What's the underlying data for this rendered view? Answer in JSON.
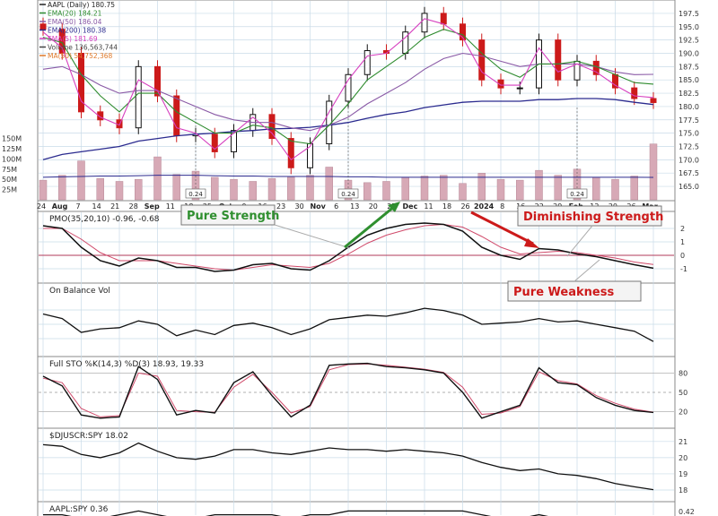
{
  "price_panel": {
    "legend": [
      {
        "text": "AAPL (Daily) 180.75",
        "color": "#222222"
      },
      {
        "text": "EMA(20) 184.21",
        "color": "#2e8b2e"
      },
      {
        "text": "EMA(50) 186.04",
        "color": "#8a5aa6"
      },
      {
        "text": "EMA(200) 180.38",
        "color": "#2b2b8f"
      },
      {
        "text": "EMA(5) 181.69",
        "color": "#d63fbf"
      },
      {
        "text": "Volume 136,563,744",
        "color": "#444444"
      },
      {
        "text": "MA(50) 54,752,368",
        "color": "#e07a2a"
      }
    ],
    "price_ticks": [
      "197.5",
      "195.0",
      "192.5",
      "190.0",
      "187.5",
      "185.0",
      "182.5",
      "180.0",
      "177.5",
      "175.0",
      "172.5",
      "170.0",
      "167.5",
      "165.0"
    ],
    "volume_ticks": [
      "150M",
      "125M",
      "100M",
      "75M",
      "50M",
      "25M"
    ],
    "date_labels": [
      "24",
      "Aug",
      "7",
      "14",
      "21",
      "28",
      "Sep",
      "11",
      "18",
      "25",
      "Oct",
      "9",
      "16",
      "23",
      "30",
      "Nov",
      "6",
      "13",
      "20",
      "27",
      "Dec",
      "11",
      "18",
      "26",
      "2024",
      "8",
      "16",
      "22",
      "29",
      "Feb",
      "12",
      "20",
      "26",
      "Mar"
    ],
    "volume_callouts": [
      "0.24",
      "0.24",
      "0.24"
    ]
  },
  "pmo_panel": {
    "title": "PMO(35,20,10) -0.96, -0.68",
    "ticks": [
      "2",
      "1",
      "0",
      "-1"
    ],
    "annotations": {
      "pure_strength": "Pure Strength",
      "diminishing_strength": "Diminishing Strength",
      "pure_weakness": "Pure Weakness"
    }
  },
  "obv_panel": {
    "title": "On Balance Vol"
  },
  "sto_panel": {
    "title": "Full STO %K(14,3) %D(3) 18.93, 19.33",
    "ticks": [
      "80",
      "50",
      "20"
    ]
  },
  "breadth_panel": {
    "title": "$DJUSCR:SPY 18.02",
    "ticks": [
      "21",
      "20",
      "19",
      "18"
    ]
  },
  "ratio_panel": {
    "title": "AAPL:SPY 0.36",
    "ticks": [
      "0.42"
    ]
  },
  "colors": {
    "up_candle": "#111111",
    "down_candle": "#cc1a1a",
    "volume": "#d7a9b6",
    "grid": "#c9dbe8",
    "annotation_green": "#2f8f2f",
    "annotation_red": "#cc1a1a",
    "pmo_signal": "#d04a6a"
  },
  "chart_data": [
    {
      "type": "candlestick",
      "title": "AAPL (Daily) 180.75",
      "ylim": [
        164,
        199
      ],
      "x": [
        "Jul 24",
        "Jul 31",
        "Aug 7",
        "Aug 14",
        "Aug 21",
        "Aug 28",
        "Sep 5",
        "Sep 11",
        "Sep 18",
        "Sep 25",
        "Oct 2",
        "Oct 9",
        "Oct 16",
        "Oct 23",
        "Oct 30",
        "Nov 6",
        "Nov 13",
        "Nov 20",
        "Nov 27",
        "Dec 4",
        "Dec 11",
        "Dec 18",
        "Dec 26",
        "Jan 2",
        "Jan 8",
        "Jan 16",
        "Jan 22",
        "Jan 29",
        "Feb 5",
        "Feb 12",
        "Feb 20",
        "Feb 26",
        "Mar 1"
      ],
      "close": [
        194.5,
        190.0,
        179.0,
        177.5,
        176.0,
        187.5,
        182.0,
        174.5,
        174.8,
        171.5,
        175.5,
        178.5,
        174.0,
        168.5,
        173.0,
        181.0,
        186.0,
        190.5,
        190.0,
        194.0,
        197.5,
        195.5,
        192.5,
        185.0,
        183.5,
        183.5,
        192.5,
        185.0,
        188.5,
        186.0,
        183.5,
        181.5,
        180.75
      ],
      "ema5": [
        194.0,
        191.0,
        181.0,
        178.0,
        176.5,
        185.0,
        183.0,
        176.0,
        175.0,
        172.0,
        175.0,
        178.0,
        175.0,
        170.0,
        172.5,
        179.0,
        185.0,
        189.5,
        190.0,
        193.0,
        196.5,
        195.5,
        193.0,
        186.5,
        184.0,
        184.0,
        191.0,
        186.5,
        188.0,
        186.5,
        184.0,
        182.0,
        181.69
      ],
      "ema20": [
        193.0,
        192.0,
        186.0,
        182.0,
        179.0,
        182.5,
        182.5,
        179.0,
        177.0,
        175.0,
        175.0,
        176.5,
        176.0,
        173.5,
        173.0,
        176.5,
        180.5,
        185.0,
        187.5,
        190.0,
        193.0,
        194.5,
        193.5,
        190.0,
        187.0,
        185.5,
        188.0,
        188.0,
        188.5,
        187.5,
        186.0,
        184.5,
        184.21
      ],
      "ema50": [
        187.0,
        187.5,
        186.0,
        184.0,
        182.5,
        183.0,
        183.0,
        181.5,
        180.0,
        178.5,
        177.5,
        177.0,
        177.0,
        176.0,
        175.5,
        176.5,
        178.0,
        180.5,
        182.5,
        184.5,
        187.0,
        189.0,
        190.0,
        189.5,
        188.5,
        187.5,
        188.0,
        188.0,
        188.0,
        187.5,
        186.5,
        186.0,
        186.04
      ],
      "ema200": [
        170.0,
        171.0,
        171.5,
        172.0,
        172.5,
        173.5,
        174.0,
        174.5,
        174.8,
        175.0,
        175.3,
        175.5,
        175.8,
        175.9,
        176.1,
        176.5,
        177.0,
        177.8,
        178.5,
        179.0,
        179.8,
        180.3,
        180.8,
        181.0,
        181.0,
        181.0,
        181.3,
        181.3,
        181.5,
        181.5,
        181.3,
        180.8,
        180.38
      ]
    },
    {
      "type": "bar",
      "title": "Volume 136,563,744",
      "ylabel": "Volume",
      "ylim": [
        0,
        160000000
      ],
      "values": [
        48000000,
        60000000,
        95000000,
        52000000,
        45000000,
        50000000,
        105000000,
        62000000,
        70000000,
        55000000,
        50000000,
        45000000,
        52000000,
        55000000,
        60000000,
        80000000,
        48000000,
        42000000,
        45000000,
        55000000,
        58000000,
        60000000,
        40000000,
        65000000,
        50000000,
        48000000,
        72000000,
        60000000,
        75000000,
        55000000,
        50000000,
        58000000,
        136563744
      ],
      "ma50": [
        55000000,
        56000000,
        57000000,
        58000000,
        58000000,
        59000000,
        60000000,
        60000000,
        60000000,
        59000000,
        58000000,
        58000000,
        57000000,
        57000000,
        57000000,
        57000000,
        56000000,
        56000000,
        55000000,
        55000000,
        55000000,
        55000000,
        55000000,
        55000000,
        55000000,
        55000000,
        55000000,
        55000000,
        55000000,
        55000000,
        55000000,
        55000000,
        54752368
      ]
    },
    {
      "type": "line",
      "title": "PMO(35,20,10) -0.96, -0.68",
      "ylim": [
        -1.8,
        3.0
      ],
      "series": [
        {
          "name": "PMO",
          "values": [
            2.2,
            2.0,
            0.6,
            -0.4,
            -0.8,
            -0.2,
            -0.4,
            -0.9,
            -0.9,
            -1.2,
            -1.1,
            -0.7,
            -0.6,
            -1.0,
            -1.1,
            -0.4,
            0.6,
            1.5,
            2.0,
            2.3,
            2.4,
            2.3,
            1.8,
            0.6,
            0.0,
            -0.3,
            0.5,
            0.4,
            0.1,
            -0.1,
            -0.4,
            -0.7,
            -0.96
          ]
        },
        {
          "name": "Signal",
          "values": [
            2.0,
            2.0,
            1.2,
            0.2,
            -0.4,
            -0.4,
            -0.4,
            -0.6,
            -0.8,
            -1.0,
            -1.1,
            -0.9,
            -0.7,
            -0.8,
            -0.9,
            -0.6,
            0.1,
            0.9,
            1.5,
            1.9,
            2.2,
            2.3,
            2.1,
            1.4,
            0.6,
            0.1,
            0.2,
            0.3,
            0.2,
            0.0,
            -0.2,
            -0.5,
            -0.68
          ]
        }
      ]
    },
    {
      "type": "line",
      "title": "On Balance Vol",
      "ylim": [
        0,
        100
      ],
      "values": [
        68,
        60,
        36,
        42,
        44,
        56,
        50,
        30,
        40,
        32,
        48,
        52,
        44,
        32,
        42,
        58,
        62,
        66,
        64,
        70,
        78,
        74,
        66,
        50,
        52,
        54,
        60,
        54,
        56,
        50,
        44,
        38,
        20
      ]
    },
    {
      "type": "line",
      "title": "Full STO %K(14,3) %D(3) 18.93, 19.33",
      "ylim": [
        0,
        100
      ],
      "series": [
        {
          "name": "%K",
          "values": [
            75,
            60,
            15,
            10,
            12,
            90,
            70,
            15,
            22,
            18,
            65,
            82,
            45,
            12,
            30,
            92,
            94,
            95,
            90,
            88,
            85,
            80,
            50,
            10,
            20,
            30,
            88,
            65,
            62,
            42,
            30,
            22,
            18.93
          ]
        },
        {
          "name": "%D",
          "values": [
            72,
            65,
            25,
            12,
            14,
            80,
            75,
            22,
            20,
            19,
            58,
            78,
            50,
            18,
            28,
            85,
            93,
            94,
            92,
            89,
            86,
            81,
            58,
            16,
            18,
            28,
            82,
            68,
            63,
            45,
            33,
            24,
            19.33
          ]
        }
      ]
    },
    {
      "type": "line",
      "title": "$DJUSCR:SPY 18.02",
      "ylim": [
        17.5,
        21.6
      ],
      "values": [
        20.8,
        20.7,
        20.2,
        20.0,
        20.3,
        20.9,
        20.4,
        20.0,
        19.9,
        20.1,
        20.5,
        20.5,
        20.3,
        20.2,
        20.4,
        20.6,
        20.5,
        20.5,
        20.4,
        20.5,
        20.4,
        20.3,
        20.1,
        19.7,
        19.4,
        19.2,
        19.3,
        19.0,
        18.9,
        18.7,
        18.4,
        18.2,
        18.02
      ]
    },
    {
      "type": "line",
      "title": "AAPL:SPY 0.36",
      "ylim": [
        0.34,
        0.45
      ],
      "values": [
        0.4,
        0.4,
        0.39,
        0.39,
        0.4,
        0.41,
        0.4,
        0.39,
        0.39,
        0.4,
        0.4,
        0.4,
        0.4,
        0.39,
        0.4,
        0.4,
        0.41,
        0.41,
        0.41,
        0.41,
        0.41,
        0.41,
        0.41,
        0.4,
        0.39,
        0.39,
        0.4,
        0.39,
        0.39,
        0.38,
        0.38,
        0.37,
        0.36
      ]
    }
  ]
}
